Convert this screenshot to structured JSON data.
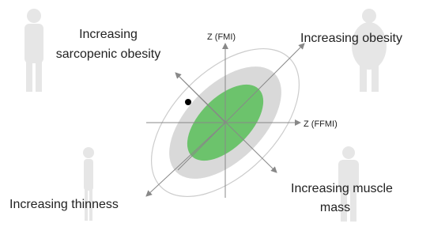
{
  "axes": {
    "vertical": "Z (FMI)",
    "horizontal": "Z (FFMI)"
  },
  "directions": {
    "sarcopenic_obesity": [
      "Increasing",
      "sarcopenic obesity"
    ],
    "obesity": "Increasing obesity",
    "thinness": "Increasing thinness",
    "muscle_mass": [
      "Increasing muscle",
      "mass"
    ]
  }
}
